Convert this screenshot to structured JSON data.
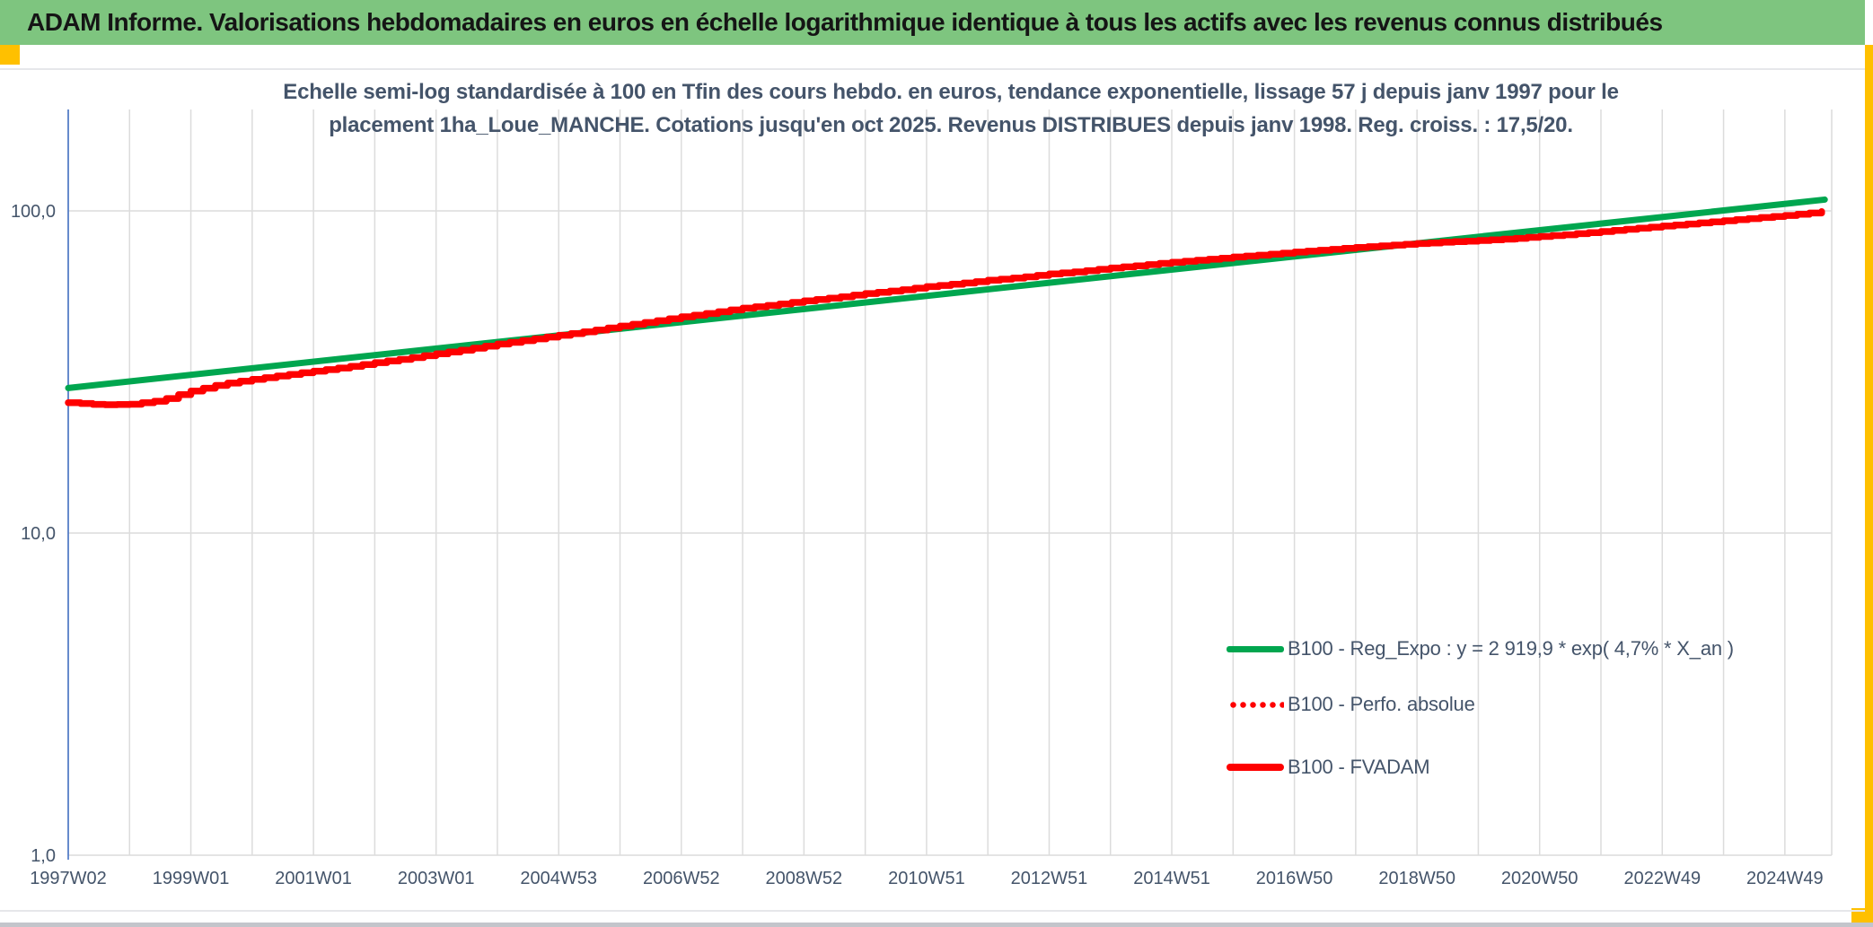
{
  "header": {
    "title": "ADAM Informe. Valorisations hebdomadaires en euros en échelle logarithmique identique à tous les actifs avec les revenus connus distribués"
  },
  "colors": {
    "header_background": "#7ec57f",
    "accent_orange": "#ffc000",
    "trend_green": "#00a64f",
    "series_red": "#fe0000",
    "text_blue_gray": "#44546a",
    "axis_blue": "#4472c4",
    "gridline_gray": "#dcdcdc"
  },
  "chart_data": {
    "type": "line",
    "title_line1": "Echelle semi-log standardisée à 100 en Tfin des cours hebdo. en euros, tendance exponentielle, lissage 57 j depuis janv 1997 pour le",
    "title_line2": "placement 1ha_Loue_MANCHE. Cotations jusqu'en oct 2025. Revenus DISTRIBUES depuis janv 1998. Reg. croiss. : 17,5/20.",
    "xlabel": "",
    "ylabel": "",
    "x_axis": {
      "tick_labels": [
        "1997W02",
        "1999W01",
        "2001W01",
        "2003W01",
        "2004W53",
        "2006W52",
        "2008W52",
        "2010W51",
        "2012W51",
        "2014W51",
        "2016W50",
        "2018W50",
        "2020W50",
        "2022W49",
        "2024W49"
      ],
      "tick_interval_years": 2,
      "range_years_since_1997": [
        0,
        28.75
      ]
    },
    "y_axis": {
      "scale": "log10",
      "ticks": [
        {
          "value": 100,
          "label": "100,0"
        },
        {
          "value": 10,
          "label": "10,0"
        },
        {
          "value": 1,
          "label": "1,0"
        }
      ],
      "range": [
        1,
        210
      ],
      "grid": true
    },
    "legend_position": "inside-right",
    "series": [
      {
        "name": "B100 - Reg_Expo : y = 2 919,9 * exp( 4,7% *  X_an )",
        "color": "#00a64f",
        "style": "solid",
        "kind": "exponential_trend",
        "value_1997": 28.2,
        "annual_rate": 0.047,
        "t_range_years": [
          0,
          28.65
        ]
      },
      {
        "name": "B100 - Perfo. absolue",
        "color": "#fe0000",
        "style": "dotted",
        "coincides_with": "B100 - FVADAM"
      },
      {
        "name": "B100 - FVADAM",
        "color": "#fe0000",
        "style": "solid-stepped",
        "points_t_years_since_1997_vs_value": [
          [
            0,
            25.4
          ],
          [
            0.5,
            25.0
          ],
          [
            1,
            25.1
          ],
          [
            1.5,
            25.8
          ],
          [
            2,
            27.6
          ],
          [
            2.5,
            29.0
          ],
          [
            3,
            30.0
          ],
          [
            3.5,
            30.9
          ],
          [
            4,
            31.8
          ],
          [
            4.5,
            32.7
          ],
          [
            5,
            33.8
          ],
          [
            5.5,
            34.8
          ],
          [
            6,
            36.0
          ],
          [
            6.5,
            37.2
          ],
          [
            7,
            38.6
          ],
          [
            7.5,
            39.8
          ],
          [
            8,
            41.1
          ],
          [
            8.5,
            42.4
          ],
          [
            9,
            43.9
          ],
          [
            9.5,
            45.3
          ],
          [
            10,
            46.9
          ],
          [
            10.5,
            48.3
          ],
          [
            11,
            49.9
          ],
          [
            11.5,
            51.1
          ],
          [
            12,
            52.6
          ],
          [
            12.5,
            53.8
          ],
          [
            13,
            55.4
          ],
          [
            13.5,
            56.6
          ],
          [
            14,
            58.2
          ],
          [
            14.5,
            59.4
          ],
          [
            15,
            60.9
          ],
          [
            15.5,
            62.1
          ],
          [
            16,
            63.7
          ],
          [
            16.5,
            64.9
          ],
          [
            17,
            66.5
          ],
          [
            17.5,
            67.8
          ],
          [
            18,
            69.3
          ],
          [
            18.5,
            70.5
          ],
          [
            19,
            71.9
          ],
          [
            19.5,
            73.1
          ],
          [
            20,
            74.5
          ],
          [
            20.5,
            75.7
          ],
          [
            21,
            77.0
          ],
          [
            21.5,
            78.1
          ],
          [
            22,
            79.2
          ],
          [
            22.5,
            80.1
          ],
          [
            23,
            80.9
          ],
          [
            23.5,
            81.9
          ],
          [
            24,
            83.3
          ],
          [
            24.5,
            84.6
          ],
          [
            25,
            86.3
          ],
          [
            25.5,
            88.0
          ],
          [
            26,
            89.7
          ],
          [
            26.5,
            91.4
          ],
          [
            27,
            93.2
          ],
          [
            27.5,
            95.0
          ],
          [
            28,
            96.8
          ],
          [
            28.3,
            98.0
          ],
          [
            28.6,
            99.5
          ]
        ]
      }
    ]
  }
}
